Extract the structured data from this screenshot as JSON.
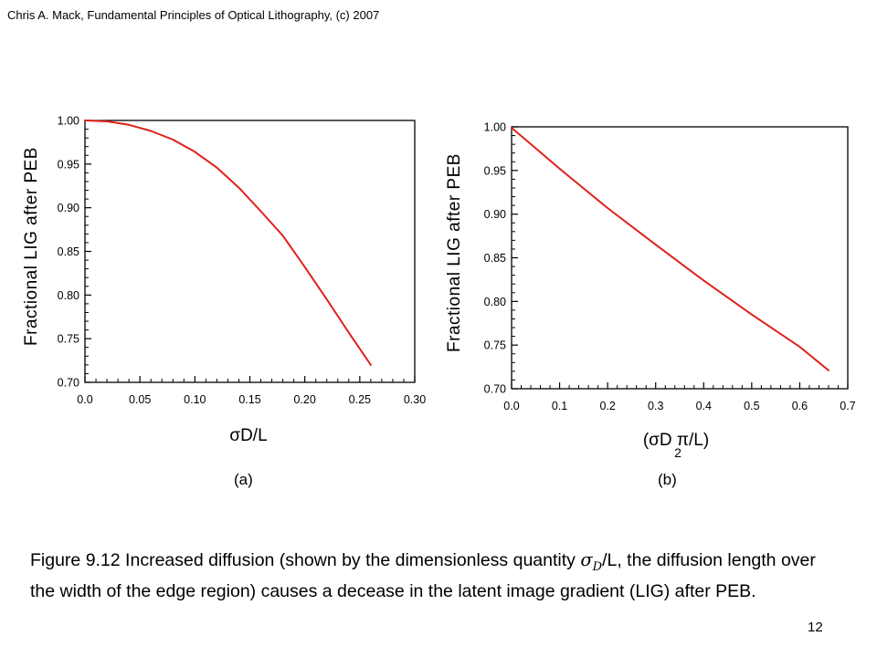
{
  "header": {
    "citation": "Chris A. Mack, Fundamental Principles of Optical Lithography, (c) 2007"
  },
  "panels": {
    "a_label": "(a)",
    "b_label": "(b)"
  },
  "caption": {
    "prefix": "Figure 9.12  Increased diffusion (shown by the dimensionless quantity ",
    "sigma": "σ",
    "sub": "D",
    "suffix": "/L, the diffusion length over the width of the edge region) causes a decease in the latent image gradient (LIG) after PEB."
  },
  "page_number": "12",
  "colors": {
    "line": "#e0201b",
    "axis": "#000000",
    "background": "#ffffff"
  },
  "chart_data": [
    {
      "type": "line",
      "title": "",
      "xlabel": "σD/L",
      "ylabel": "Fractional LIG after PEB",
      "xlim": [
        0.0,
        0.3
      ],
      "ylim": [
        0.7,
        1.0
      ],
      "xticks": [
        "0.0",
        "0.05",
        "0.10",
        "0.15",
        "0.20",
        "0.25",
        "0.30"
      ],
      "yticks": [
        "0.70",
        "0.75",
        "0.80",
        "0.85",
        "0.90",
        "0.95",
        "1.00"
      ],
      "grid": false,
      "series": [
        {
          "x": [
            0.0,
            0.02,
            0.04,
            0.06,
            0.08,
            0.1,
            0.12,
            0.14,
            0.16,
            0.18,
            0.2,
            0.22,
            0.24,
            0.26
          ],
          "y": [
            1.0,
            0.999,
            0.995,
            0.988,
            0.978,
            0.964,
            0.946,
            0.923,
            0.896,
            0.868,
            0.832,
            0.795,
            0.757,
            0.72
          ]
        }
      ]
    },
    {
      "type": "line",
      "title": "",
      "xlabel": "(σD π/L)",
      "xlabel_sub": "2",
      "ylabel": "Fractional LIG after PEB",
      "xlim": [
        0.0,
        0.7
      ],
      "ylim": [
        0.7,
        1.0
      ],
      "xticks": [
        "0.0",
        "0.1",
        "0.2",
        "0.3",
        "0.4",
        "0.5",
        "0.6",
        "0.7"
      ],
      "yticks": [
        "0.70",
        "0.75",
        "0.80",
        "0.85",
        "0.90",
        "0.95",
        "1.00"
      ],
      "grid": false,
      "series": [
        {
          "x": [
            0.0,
            0.1,
            0.2,
            0.3,
            0.4,
            0.5,
            0.6,
            0.66
          ],
          "y": [
            0.999,
            0.952,
            0.907,
            0.865,
            0.824,
            0.785,
            0.748,
            0.721
          ]
        }
      ]
    }
  ]
}
